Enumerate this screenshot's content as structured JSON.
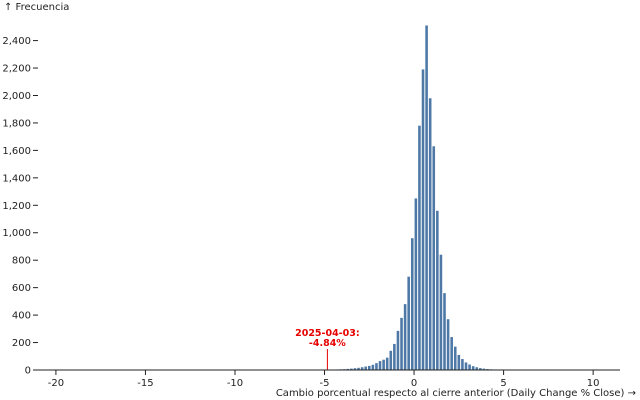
{
  "chart_data": {
    "type": "bar",
    "title": "",
    "ylabel": "↑ Frecuencia",
    "xlabel": "Cambio porcentual respecto al cierre anterior (Daily Change % Close) →",
    "xlim": [
      -21,
      11.5
    ],
    "ylim": [
      0,
      2550
    ],
    "x_ticks": [
      {
        "value": -20,
        "label": "-20"
      },
      {
        "value": -15,
        "label": "-15"
      },
      {
        "value": -10,
        "label": "-10"
      },
      {
        "value": -5,
        "label": "-5"
      },
      {
        "value": 0,
        "label": "0"
      },
      {
        "value": 5,
        "label": "5"
      },
      {
        "value": 10,
        "label": "10"
      }
    ],
    "y_ticks": [
      {
        "value": 0,
        "label": "0"
      },
      {
        "value": 200,
        "label": "200"
      },
      {
        "value": 400,
        "label": "400"
      },
      {
        "value": 600,
        "label": "600"
      },
      {
        "value": 800,
        "label": "800"
      },
      {
        "value": 1000,
        "label": "1,000"
      },
      {
        "value": 1200,
        "label": "1,200"
      },
      {
        "value": 1400,
        "label": "1,400"
      },
      {
        "value": 1600,
        "label": "1,600"
      },
      {
        "value": 1800,
        "label": "1,800"
      },
      {
        "value": 2000,
        "label": "2,000"
      },
      {
        "value": 2200,
        "label": "2,200"
      },
      {
        "value": 2400,
        "label": "2,400"
      }
    ],
    "bin_width": 0.2,
    "bins": [
      {
        "x0": -20.6,
        "count": 1
      },
      {
        "x0": -8.0,
        "count": 1
      },
      {
        "x0": -7.0,
        "count": 1
      },
      {
        "x0": -6.6,
        "count": 1
      },
      {
        "x0": -6.2,
        "count": 1
      },
      {
        "x0": -5.8,
        "count": 1
      },
      {
        "x0": -5.4,
        "count": 2
      },
      {
        "x0": -5.0,
        "count": 2
      },
      {
        "x0": -4.8,
        "count": 3
      },
      {
        "x0": -4.6,
        "count": 3
      },
      {
        "x0": -4.4,
        "count": 4
      },
      {
        "x0": -4.2,
        "count": 5
      },
      {
        "x0": -4.0,
        "count": 6
      },
      {
        "x0": -3.8,
        "count": 8
      },
      {
        "x0": -3.6,
        "count": 10
      },
      {
        "x0": -3.4,
        "count": 13
      },
      {
        "x0": -3.2,
        "count": 16
      },
      {
        "x0": -3.0,
        "count": 20
      },
      {
        "x0": -2.8,
        "count": 25
      },
      {
        "x0": -2.6,
        "count": 30
      },
      {
        "x0": -2.4,
        "count": 38
      },
      {
        "x0": -2.2,
        "count": 50
      },
      {
        "x0": -2.0,
        "count": 65
      },
      {
        "x0": -1.8,
        "count": 75
      },
      {
        "x0": -1.6,
        "count": 90
      },
      {
        "x0": -1.4,
        "count": 140
      },
      {
        "x0": -1.2,
        "count": 190
      },
      {
        "x0": -1.0,
        "count": 285
      },
      {
        "x0": -0.8,
        "count": 380
      },
      {
        "x0": -0.6,
        "count": 480
      },
      {
        "x0": -0.4,
        "count": 680
      },
      {
        "x0": -0.2,
        "count": 960
      },
      {
        "x0": 0.0,
        "count": 1250
      },
      {
        "x0": 0.2,
        "count": 1780
      },
      {
        "x0": 0.4,
        "count": 2190
      },
      {
        "x0": 0.6,
        "count": 2510
      },
      {
        "x0": 0.8,
        "count": 1980
      },
      {
        "x0": 1.0,
        "count": 1630
      },
      {
        "x0": 1.2,
        "count": 1160
      },
      {
        "x0": 1.4,
        "count": 840
      },
      {
        "x0": 1.6,
        "count": 560
      },
      {
        "x0": 1.8,
        "count": 370
      },
      {
        "x0": 2.0,
        "count": 240
      },
      {
        "x0": 2.2,
        "count": 170
      },
      {
        "x0": 2.4,
        "count": 110
      },
      {
        "x0": 2.6,
        "count": 80
      },
      {
        "x0": 2.8,
        "count": 55
      },
      {
        "x0": 3.0,
        "count": 40
      },
      {
        "x0": 3.2,
        "count": 28
      },
      {
        "x0": 3.4,
        "count": 20
      },
      {
        "x0": 3.6,
        "count": 14
      },
      {
        "x0": 3.8,
        "count": 10
      },
      {
        "x0": 4.0,
        "count": 7
      },
      {
        "x0": 4.2,
        "count": 5
      },
      {
        "x0": 4.4,
        "count": 4
      },
      {
        "x0": 4.6,
        "count": 3
      },
      {
        "x0": 4.8,
        "count": 2
      },
      {
        "x0": 5.0,
        "count": 2
      },
      {
        "x0": 5.4,
        "count": 1
      },
      {
        "x0": 5.8,
        "count": 1
      },
      {
        "x0": 6.4,
        "count": 1
      },
      {
        "x0": 7.0,
        "count": 1
      },
      {
        "x0": 10.6,
        "count": 1
      }
    ],
    "annotation": {
      "x": -4.84,
      "date": "2025-04-03:",
      "value": "-4.84%"
    },
    "bar_color": "#4e79a7",
    "annotation_color": "#e60000",
    "grid": false,
    "legend": "none"
  }
}
